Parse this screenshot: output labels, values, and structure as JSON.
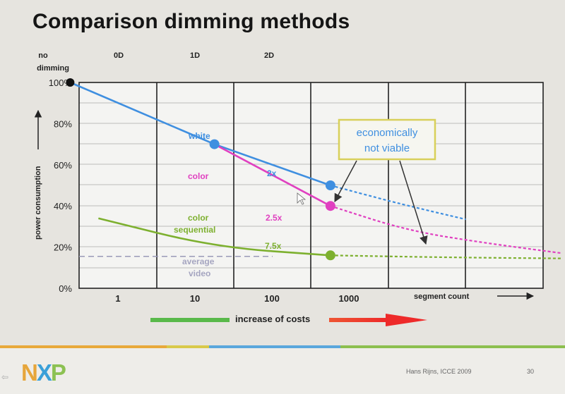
{
  "slide": {
    "title": "Comparison dimming methods",
    "footer_author": "Hans Rijns, ICCE 2009",
    "footer_page": "30",
    "logo": "NXP"
  },
  "chart_data": {
    "type": "line",
    "title": "Comparison dimming methods",
    "ylabel": "power consumption",
    "xlabel": "segment count",
    "ylim": [
      0,
      100
    ],
    "y_ticks": [
      "0%",
      "20%",
      "40%",
      "60%",
      "80%",
      "100%"
    ],
    "x_tick_labels": [
      "1",
      "10",
      "100",
      "1000"
    ],
    "column_headers": [
      "no dimming",
      "0D",
      "1D",
      "2D"
    ],
    "series": [
      {
        "name": "white",
        "color": "#3f8fe0",
        "points": [
          [
            0.5,
            100
          ],
          [
            3.5,
            70
          ],
          [
            6.5,
            50
          ]
        ],
        "projection": [
          [
            6.5,
            50
          ],
          [
            8.1,
            42
          ],
          [
            9.2,
            37
          ],
          [
            10.0,
            33.5
          ]
        ],
        "ratio_label": "2x"
      },
      {
        "name": "color",
        "color": "#e040c0",
        "points": [
          [
            3.5,
            70
          ],
          [
            6.5,
            40
          ]
        ],
        "projection": [
          [
            6.5,
            40
          ],
          [
            8.5,
            28
          ],
          [
            10.5,
            22
          ],
          [
            12.5,
            17
          ]
        ],
        "ratio_label": "2.5x"
      },
      {
        "name": "color sequential",
        "color": "#7db02f",
        "points": [
          [
            0.5,
            34
          ],
          [
            3.5,
            20
          ],
          [
            6.5,
            16
          ]
        ],
        "projection": [
          [
            6.5,
            16
          ],
          [
            9.5,
            15
          ],
          [
            12.5,
            14.5
          ]
        ],
        "ratio_label": "7.5x"
      }
    ],
    "reference_line": {
      "name": "average video",
      "value": 15.5,
      "color": "#9a9ab8"
    },
    "annotation": "economically not viable",
    "cost_label": "increase of costs",
    "grid": true
  }
}
